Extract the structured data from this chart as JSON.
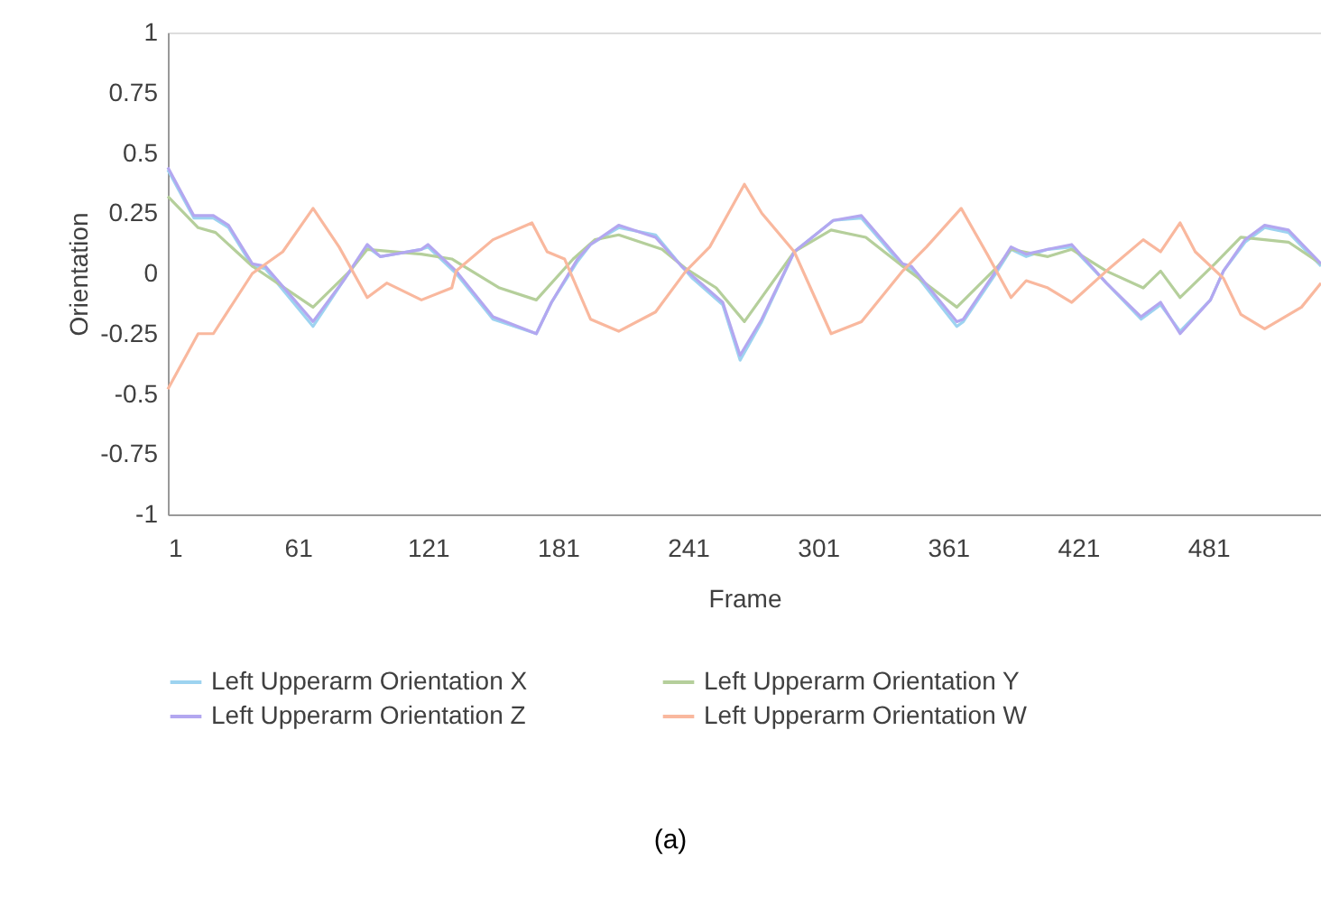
{
  "chart_data": {
    "type": "line",
    "xlabel": "Frame",
    "ylabel": "Orientation",
    "xlim": [
      1,
      533
    ],
    "xticks": [
      1,
      61,
      121,
      181,
      241,
      301,
      361,
      421,
      481
    ],
    "ylim": [
      -1,
      1
    ],
    "yticks": [
      -1,
      -0.75,
      -0.5,
      -0.25,
      0,
      0.25,
      0.5,
      0.75,
      1
    ],
    "grid": false,
    "legend": "bottom",
    "marker": "none",
    "line_style": "solid",
    "annotations": [
      "(a)"
    ],
    "series": [
      {
        "name": "Left Upperarm Orientation X",
        "color": "#9dd3f0",
        "x": [
          1,
          13,
          22,
          29,
          40,
          46,
          68,
          82,
          93,
          99,
          118,
          121,
          134,
          151,
          171,
          178,
          190,
          196,
          209,
          226,
          238,
          243,
          257,
          265,
          275,
          290,
          308,
          321,
          340,
          344,
          365,
          368,
          383,
          390,
          397,
          407,
          418,
          434,
          450,
          459,
          468,
          482,
          488,
          498,
          507,
          518,
          533
        ],
        "values": [
          0.43,
          0.23,
          0.23,
          0.19,
          0.03,
          0.02,
          -0.22,
          -0.03,
          0.11,
          0.07,
          0.1,
          0.11,
          0.0,
          -0.19,
          -0.25,
          -0.12,
          0.05,
          0.12,
          0.19,
          0.16,
          0.03,
          -0.02,
          -0.13,
          -0.36,
          -0.2,
          0.09,
          0.22,
          0.23,
          0.03,
          0.02,
          -0.22,
          -0.2,
          0.0,
          0.1,
          0.07,
          0.1,
          0.11,
          -0.04,
          -0.19,
          -0.13,
          -0.24,
          -0.11,
          0.01,
          0.13,
          0.19,
          0.17,
          0.03
        ]
      },
      {
        "name": "Left Upperarm Orientation Y",
        "color": "#b5cf9b",
        "x": [
          1,
          15,
          23,
          40,
          68,
          85,
          93,
          118,
          132,
          154,
          171,
          188,
          198,
          209,
          229,
          240,
          254,
          267,
          290,
          307,
          323,
          340,
          365,
          384,
          390,
          407,
          418,
          434,
          451,
          459,
          468,
          484,
          496,
          518,
          533
        ],
        "values": [
          0.32,
          0.19,
          0.17,
          0.03,
          -0.14,
          0.01,
          0.1,
          0.08,
          0.06,
          -0.06,
          -0.11,
          0.06,
          0.14,
          0.16,
          0.1,
          0.02,
          -0.06,
          -0.2,
          0.09,
          0.18,
          0.15,
          0.03,
          -0.14,
          0.03,
          0.1,
          0.07,
          0.1,
          0.01,
          -0.06,
          0.01,
          -0.1,
          0.04,
          0.15,
          0.13,
          0.04
        ]
      },
      {
        "name": "Left Upperarm Orientation Z",
        "color": "#b3a7f0",
        "x": [
          1,
          13,
          22,
          29,
          40,
          46,
          68,
          82,
          93,
          99,
          118,
          121,
          134,
          151,
          171,
          178,
          190,
          196,
          209,
          226,
          238,
          243,
          257,
          265,
          275,
          290,
          308,
          321,
          340,
          344,
          365,
          368,
          383,
          390,
          397,
          407,
          418,
          434,
          450,
          459,
          468,
          482,
          488,
          498,
          507,
          518,
          533
        ],
        "values": [
          0.44,
          0.24,
          0.24,
          0.2,
          0.04,
          0.03,
          -0.2,
          -0.03,
          0.12,
          0.07,
          0.1,
          0.12,
          0.01,
          -0.18,
          -0.25,
          -0.12,
          0.06,
          0.12,
          0.2,
          0.15,
          0.03,
          -0.01,
          -0.12,
          -0.34,
          -0.19,
          0.09,
          0.22,
          0.24,
          0.04,
          0.03,
          -0.2,
          -0.19,
          0.01,
          0.11,
          0.08,
          0.1,
          0.12,
          -0.04,
          -0.18,
          -0.12,
          -0.25,
          -0.11,
          0.01,
          0.14,
          0.2,
          0.18,
          0.04
        ]
      },
      {
        "name": "Left Upperarm Orientation W",
        "color": "#f9b89e",
        "x": [
          1,
          15,
          22,
          40,
          54,
          68,
          80,
          93,
          102,
          118,
          132,
          134,
          151,
          169,
          176,
          184,
          196,
          209,
          226,
          240,
          251,
          267,
          275,
          290,
          307,
          321,
          340,
          351,
          367,
          379,
          390,
          397,
          407,
          418,
          434,
          451,
          459,
          468,
          475,
          488,
          496,
          507,
          524,
          533
        ],
        "values": [
          -0.48,
          -0.25,
          -0.25,
          0.0,
          0.09,
          0.27,
          0.11,
          -0.1,
          -0.04,
          -0.11,
          -0.06,
          0.01,
          0.14,
          0.21,
          0.09,
          0.06,
          -0.19,
          -0.24,
          -0.16,
          0.01,
          0.11,
          0.37,
          0.25,
          0.09,
          -0.25,
          -0.2,
          0.01,
          0.11,
          0.27,
          0.08,
          -0.1,
          -0.03,
          -0.06,
          -0.12,
          0.01,
          0.14,
          0.09,
          0.21,
          0.09,
          -0.02,
          -0.17,
          -0.23,
          -0.14,
          -0.04
        ]
      }
    ]
  }
}
